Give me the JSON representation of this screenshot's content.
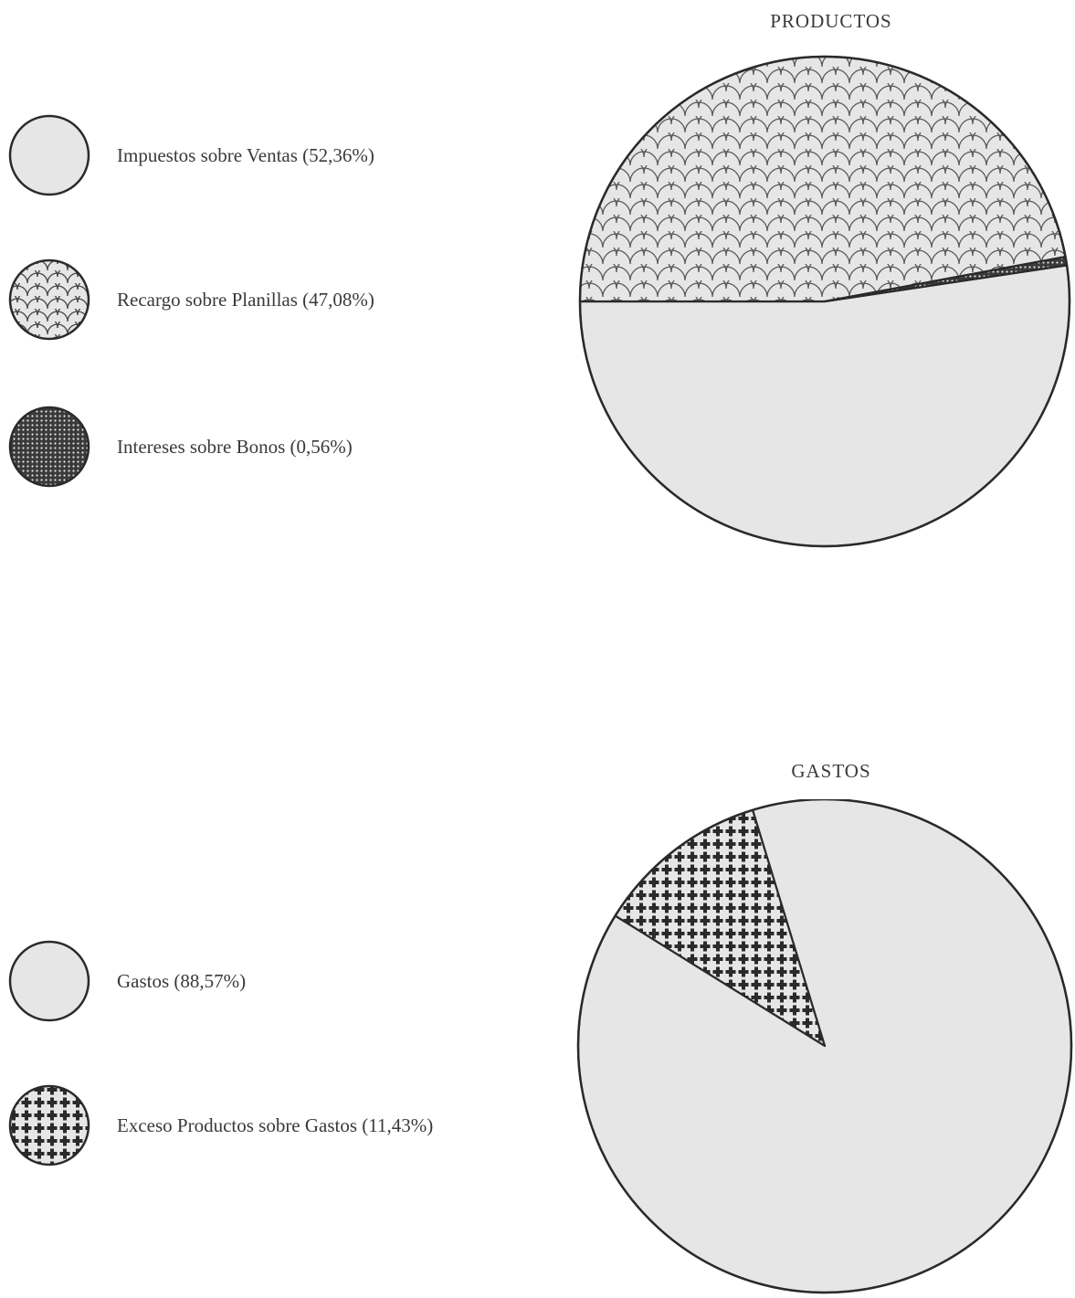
{
  "chart_data": [
    {
      "type": "pie",
      "title": "PRODUCTOS",
      "slices": [
        {
          "label": "Impuestos sobre Ventas (52,36%)",
          "value": 52.36,
          "pattern": "plain"
        },
        {
          "label": "Recargo sobre Planillas (47,08%)",
          "value": 47.08,
          "pattern": "scales"
        },
        {
          "label": "Intereses sobre Bonos (0,56%)",
          "value": 0.56,
          "pattern": "dots"
        }
      ],
      "legend_position": "left"
    },
    {
      "type": "pie",
      "title": "GASTOS",
      "slices": [
        {
          "label": "Gastos (88,57%)",
          "value": 88.57,
          "pattern": "plain"
        },
        {
          "label": "Exceso Productos sobre Gastos (11,43%)",
          "value": 11.43,
          "pattern": "crosses"
        }
      ],
      "legend_position": "left"
    }
  ],
  "colors": {
    "fill": "#e6e6e6",
    "stroke": "#2a2a2a",
    "ink": "#3a3a3a"
  }
}
